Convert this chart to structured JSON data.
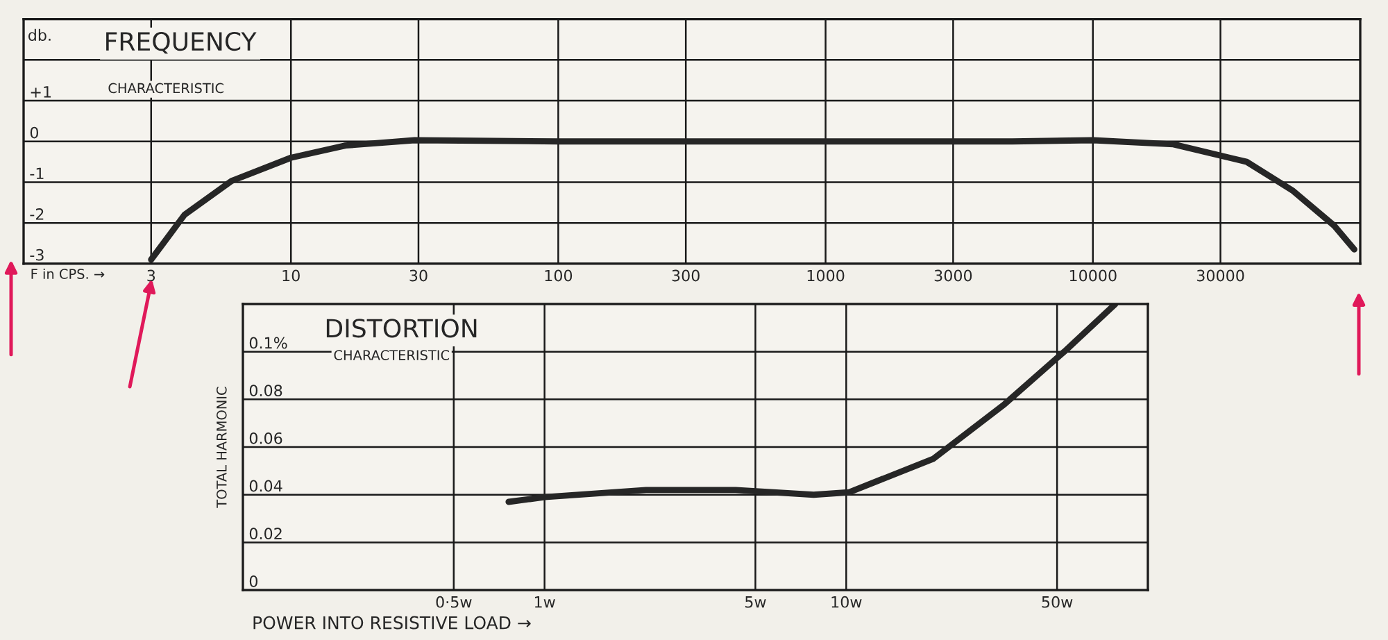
{
  "chart_data": [
    {
      "type": "line",
      "title": "FREQUENCY",
      "subtitle": "CHARACTERISTIC",
      "ylabel": "db.",
      "xlabel": "F in CPS. →",
      "log": "x",
      "grid": true,
      "xlim": [
        1,
        100000
      ],
      "xticks": [
        3,
        10,
        30,
        100,
        300,
        1000,
        3000,
        10000,
        30000
      ],
      "ylim": [
        -3,
        3
      ],
      "yticks": [
        {
          "value": 3,
          "label": null
        },
        {
          "value": 2,
          "label": null
        },
        {
          "value": 1,
          "label": "+1"
        },
        0,
        {
          "value": -1,
          "label": "-1"
        },
        {
          "value": -2,
          "label": "-2"
        },
        {
          "value": -3,
          "label": "-3"
        }
      ],
      "series": [
        {
          "color": "#262626",
          "x": [
            3,
            4,
            6,
            10,
            16,
            29,
            100,
            1000,
            5000,
            10000,
            20000,
            37600,
            55700,
            80000,
            95000
          ],
          "values": [
            -2.9,
            -1.8,
            -0.97,
            -0.4,
            -0.1,
            0.03,
            0,
            0,
            0,
            0.03,
            -0.07,
            -0.5,
            -1.2,
            -2.07,
            -2.65
          ]
        }
      ]
    },
    {
      "type": "line",
      "title": "DISTORTION",
      "subtitle": "CHARACTERISTIC",
      "ylabel": "TOTAL HARMONIC",
      "xlabel": "POWER INTO RESISTIVE LOAD →",
      "log": "x",
      "grid": true,
      "xlim": [
        0.1,
        100
      ],
      "xticks": [
        {
          "value": 0.5,
          "label": "0·5w"
        },
        {
          "value": 1,
          "label": "1w"
        },
        {
          "value": 5,
          "label": "5w"
        },
        {
          "value": 10,
          "label": "10w"
        },
        {
          "value": 50,
          "label": "50w"
        }
      ],
      "ylim": [
        0,
        0.12
      ],
      "yticks": [
        0,
        0.02,
        0.04,
        0.06,
        0.08,
        {
          "value": 0.1,
          "label": "0.1%"
        },
        {
          "value": 0.12,
          "label": null
        }
      ],
      "series": [
        {
          "color": "#262626",
          "x": [
            0.76,
            1,
            2.17,
            4.3,
            7.8,
            10.2,
            19.4,
            33.5,
            52.8,
            78
          ],
          "values": [
            0.037,
            0.039,
            0.042,
            0.042,
            0.04,
            0.041,
            0.055,
            0.078,
            0.1,
            0.12
          ]
        }
      ]
    }
  ]
}
